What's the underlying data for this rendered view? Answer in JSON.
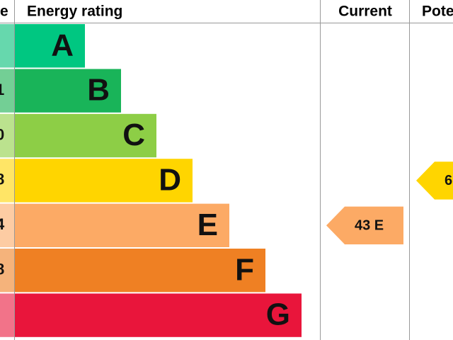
{
  "header": {
    "score": "e",
    "rating": "Energy rating",
    "current": "Current",
    "potential": "Pote"
  },
  "rows": [
    {
      "band": "A",
      "score": "",
      "color": "#00c781",
      "light": "#66d8ad"
    },
    {
      "band": "B",
      "score": "1",
      "color": "#19b459",
      "light": "#73cf95"
    },
    {
      "band": "C",
      "score": "0",
      "color": "#8dce46",
      "light": "#bbe28e"
    },
    {
      "band": "D",
      "score": "8",
      "color": "#ffd500",
      "light": "#ffe566"
    },
    {
      "band": "E",
      "score": "4",
      "color": "#fcaa65",
      "light": "#fdcca3"
    },
    {
      "band": "F",
      "score": "8",
      "color": "#ef8023",
      "light": "#f5b37b"
    },
    {
      "band": "G",
      "score": "",
      "color": "#e9153b",
      "light": "#f27389"
    }
  ],
  "current": {
    "label": "43 E",
    "row": 4
  },
  "potential": {
    "label": "6",
    "row": 3
  }
}
